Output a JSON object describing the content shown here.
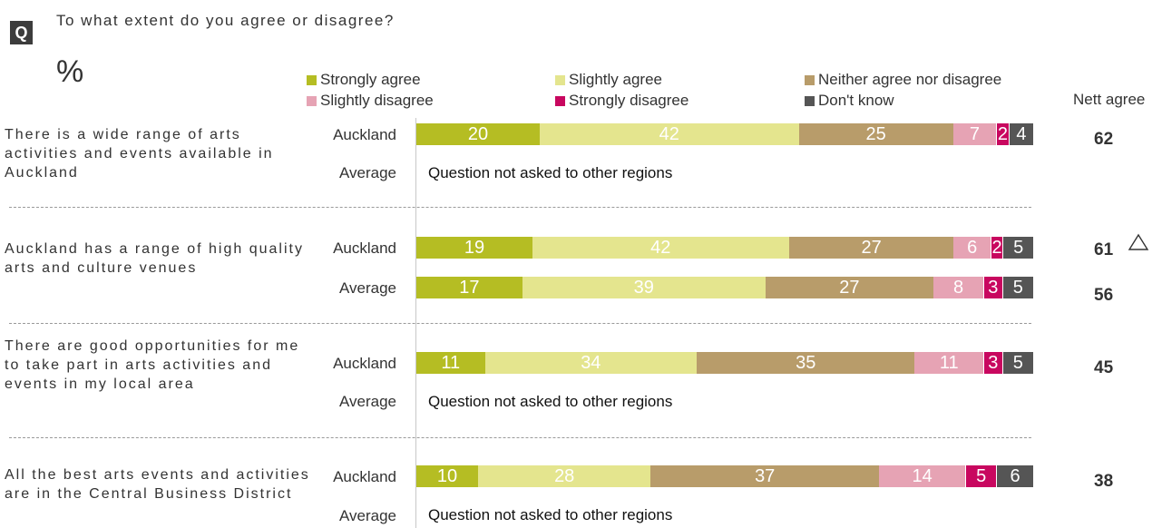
{
  "question": {
    "badge": "Q",
    "text": "To what extent do you agree or disagree?",
    "unit": "%"
  },
  "legend": [
    {
      "label": "Strongly agree",
      "color": "#b5bd23"
    },
    {
      "label": "Slightly agree",
      "color": "#e4e58e"
    },
    {
      "label": "Neither agree nor disagree",
      "color": "#b89c6a"
    },
    {
      "label": "Slightly disagree",
      "color": "#e6a3b4"
    },
    {
      "label": "Strongly disagree",
      "color": "#c8075f"
    },
    {
      "label": "Don't know",
      "color": "#555555"
    }
  ],
  "nett_header": "Nett agree",
  "not_asked_text": "Question not asked to other regions",
  "chart_data": {
    "type": "bar",
    "stacked": true,
    "orientation": "horizontal",
    "unit": "%",
    "series_names": [
      "Strongly agree",
      "Slightly agree",
      "Neither agree nor disagree",
      "Slightly disagree",
      "Strongly disagree",
      "Don't know"
    ],
    "statements": [
      {
        "text": "There is a wide range of arts activities and events available in Auckland",
        "rows": [
          {
            "label": "Auckland",
            "values": [
              20,
              42,
              25,
              7,
              2,
              4
            ],
            "nett": "62"
          },
          {
            "label": "Average",
            "values": null,
            "nett": ""
          }
        ]
      },
      {
        "text": "Auckland has a range of high quality arts and culture venues",
        "rows": [
          {
            "label": "Auckland",
            "values": [
              19,
              42,
              27,
              6,
              2,
              5
            ],
            "nett": "61",
            "marker": "triangle-up"
          },
          {
            "label": "Average",
            "values": [
              17,
              39,
              27,
              8,
              3,
              5
            ],
            "nett": "56"
          }
        ]
      },
      {
        "text": "There are good opportunities for me to take part in arts activities and events in my local area",
        "rows": [
          {
            "label": "Auckland",
            "values": [
              11,
              34,
              35,
              11,
              3,
              5
            ],
            "nett": "45"
          },
          {
            "label": "Average",
            "values": null,
            "nett": ""
          }
        ]
      },
      {
        "text": "All the best arts events and activities are in the Central Business District",
        "rows": [
          {
            "label": "Auckland",
            "values": [
              10,
              28,
              37,
              14,
              5,
              6
            ],
            "nett": "38"
          },
          {
            "label": "Average",
            "values": null,
            "nett": ""
          }
        ]
      }
    ]
  }
}
